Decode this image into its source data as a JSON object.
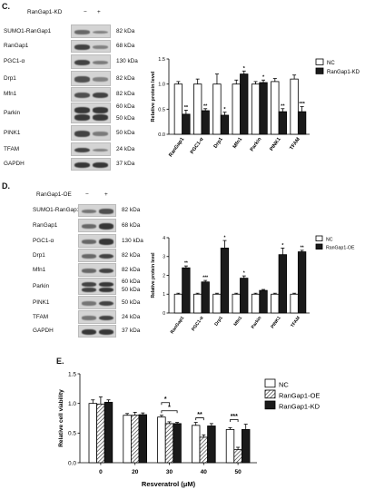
{
  "panel_c": {
    "letter": "C.",
    "header": {
      "label": "RanGap1-KD",
      "minus": "−",
      "plus": "+"
    },
    "rows": [
      {
        "label": "SUMO1-RanGap1",
        "kda": "82 kDa"
      },
      {
        "label": "RanGap1",
        "kda": "68 kDa"
      },
      {
        "label": "PGC1-α",
        "kda": "130 kDa"
      },
      {
        "label": "Drp1",
        "kda": "82 kDa"
      },
      {
        "label": "Mfn1",
        "kda": "82 kDa"
      },
      {
        "label": "Parkin",
        "kda": "60 kDa",
        "kda2": "50 kDa"
      },
      {
        "label": "PINK1",
        "kda": "50 kDa"
      },
      {
        "label": "TFAM",
        "kda": "24 kDa"
      },
      {
        "label": "GAPDH",
        "kda": "37 kDa"
      }
    ]
  },
  "panel_d": {
    "letter": "D.",
    "header": {
      "label": "RanGap1-OE",
      "minus": "−",
      "plus": "+"
    },
    "rows": [
      {
        "label": "SUMO1-RanGap1",
        "kda": "82 kDa"
      },
      {
        "label": "RanGap1",
        "kda": "68 kDa"
      },
      {
        "label": "PGC1-α",
        "kda": "130 kDa"
      },
      {
        "label": "Drp1",
        "kda": "82 kDa"
      },
      {
        "label": "Mfn1",
        "kda": "82 kDa"
      },
      {
        "label": "Parkin",
        "kda": "60 kDa",
        "kda2": "50 kDa"
      },
      {
        "label": "PINK1",
        "kda": "50 kDa"
      },
      {
        "label": "TFAM",
        "kda": "24 kDa"
      },
      {
        "label": "GAPDH",
        "kda": "37 kDa"
      }
    ]
  },
  "panel_e": {
    "letter": "E."
  },
  "chart_data": [
    {
      "type": "bar",
      "panel": "C",
      "ylabel": "Relative protein level",
      "ylim": [
        0,
        1.5
      ],
      "yticks": [
        "0.0",
        "0.5",
        "1.0",
        "1.5"
      ],
      "categories": [
        "RanGap1",
        "PGC1-α",
        "Drp1",
        "Mfn1",
        "Parkin",
        "PINK1",
        "TFAM"
      ],
      "series": [
        {
          "name": "NC",
          "values": [
            1.0,
            1.0,
            1.0,
            1.0,
            1.0,
            1.05,
            1.1
          ],
          "errors": [
            0.05,
            0.1,
            0.2,
            0.08,
            0.05,
            0.06,
            0.08
          ]
        },
        {
          "name": "RanGap1-KD",
          "values": [
            0.4,
            0.47,
            0.38,
            1.2,
            1.03,
            0.45,
            0.45
          ],
          "errors": [
            0.08,
            0.04,
            0.06,
            0.06,
            0.05,
            0.06,
            0.1
          ]
        }
      ],
      "significance": [
        "**",
        "**",
        "*",
        "*",
        "*",
        "**",
        "***"
      ],
      "legend_position": "top-right"
    },
    {
      "type": "bar",
      "panel": "D",
      "ylabel": "Relative protein level",
      "ylim": [
        0,
        4
      ],
      "yticks": [
        "0",
        "1",
        "2",
        "3",
        "4"
      ],
      "categories": [
        "RanGap1",
        "PGC1-α",
        "Drp1",
        "Mfn1",
        "Parkin",
        "PINK1",
        "TFAM"
      ],
      "series": [
        {
          "name": "NC",
          "values": [
            1.0,
            1.0,
            1.0,
            1.0,
            1.0,
            1.0,
            1.0
          ],
          "errors": [
            0.05,
            0.05,
            0.05,
            0.05,
            0.05,
            0.05,
            0.05
          ]
        },
        {
          "name": "RanGap1-OE",
          "values": [
            2.4,
            1.65,
            3.45,
            1.85,
            1.2,
            3.1,
            3.25
          ],
          "errors": [
            0.1,
            0.08,
            0.4,
            0.12,
            0.05,
            0.35,
            0.08
          ]
        }
      ],
      "significance": [
        "**",
        "***",
        "*",
        "*",
        "",
        "*",
        "**"
      ],
      "legend_position": "top-right"
    },
    {
      "type": "bar",
      "panel": "E",
      "xlabel": "Resveratrol (μM)",
      "ylabel": "Relative cell viability",
      "ylim": [
        0,
        1.5
      ],
      "yticks": [
        "0.0",
        "0.5",
        "1.0",
        "1.5"
      ],
      "categories": [
        "0",
        "20",
        "30",
        "40",
        "50"
      ],
      "series": [
        {
          "name": "NC",
          "values": [
            1.0,
            0.8,
            0.77,
            0.63,
            0.56
          ],
          "errors": [
            0.06,
            0.03,
            0.03,
            0.05,
            0.03
          ]
        },
        {
          "name": "RanGap1-OE",
          "values": [
            0.99,
            0.8,
            0.66,
            0.43,
            0.22
          ],
          "errors": [
            0.12,
            0.05,
            0.03,
            0.04,
            0.04
          ]
        },
        {
          "name": "RanGap1-KD",
          "values": [
            1.02,
            0.81,
            0.66,
            0.62,
            0.56
          ],
          "errors": [
            0.04,
            0.03,
            0.02,
            0.04,
            0.09
          ]
        }
      ],
      "annotations": [
        {
          "group": "30",
          "pair": "NC-KD",
          "label": "*"
        },
        {
          "group": "30",
          "pair": "NC-OE",
          "label": "*"
        },
        {
          "group": "40",
          "pair": "NC-OE",
          "label": "**"
        },
        {
          "group": "50",
          "pair": "NC-OE",
          "label": "***"
        }
      ],
      "legend_position": "top-right"
    }
  ]
}
